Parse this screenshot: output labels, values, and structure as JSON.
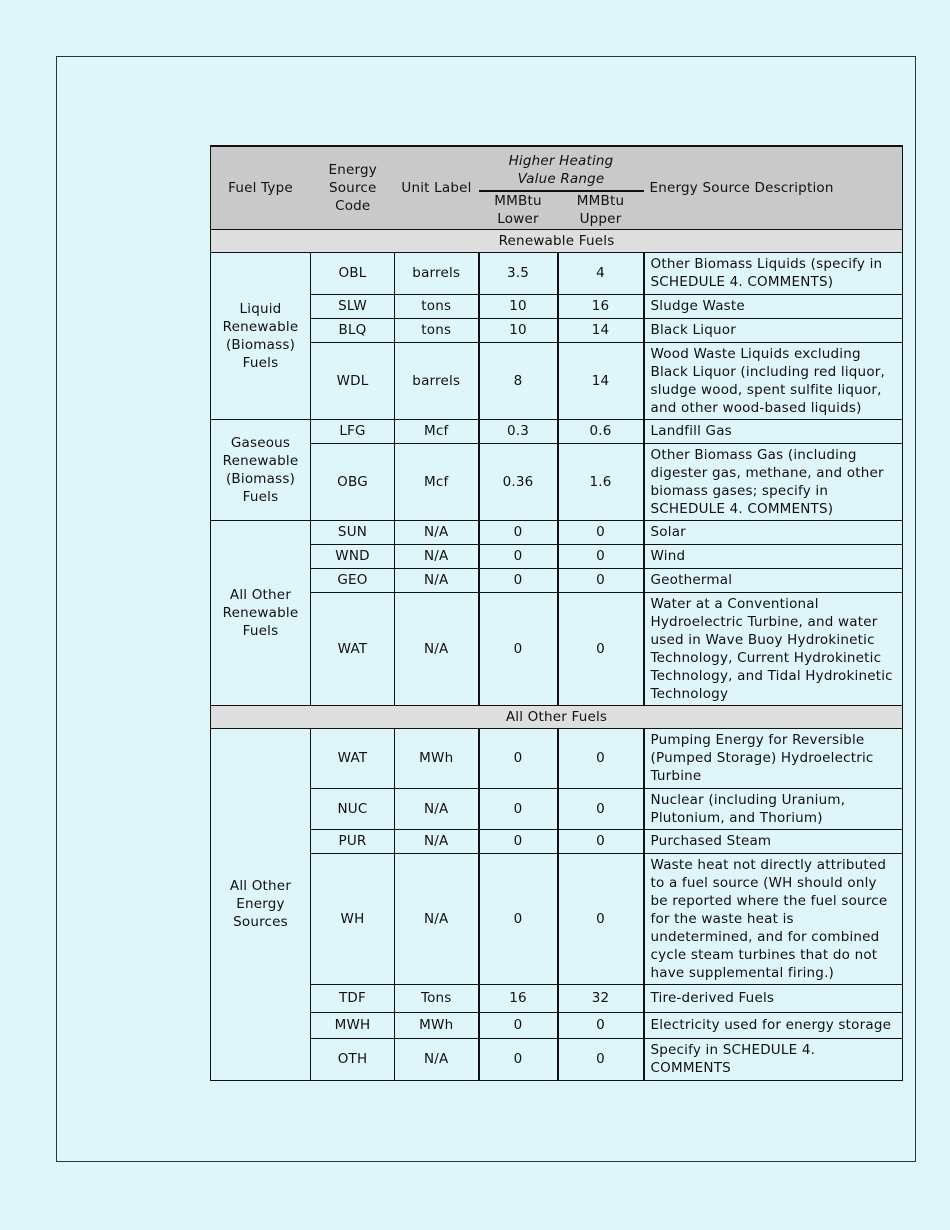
{
  "header": {
    "fuel_type": "Fuel Type",
    "code": "Energy Source Code",
    "unit": "Unit Label",
    "hhv": "Higher Heating Value Range",
    "lower": "MMBtu Lower",
    "upper": "MMBtu Upper",
    "description": "Energy Source Description"
  },
  "sections": [
    {
      "title": "Renewable Fuels",
      "groups": [
        {
          "fuel_type": "Liquid Renewable (Biomass) Fuels",
          "rows": [
            {
              "code": "OBL",
              "unit": "barrels",
              "lower": "3.5",
              "upper": "4",
              "description": "Other Biomass Liquids (specify in SCHEDULE 4. COMMENTS)"
            },
            {
              "code": "SLW",
              "unit": "tons",
              "lower": "10",
              "upper": "16",
              "description": "Sludge Waste"
            },
            {
              "code": "BLQ",
              "unit": "tons",
              "lower": "10",
              "upper": "14",
              "description": "Black Liquor"
            },
            {
              "code": "WDL",
              "unit": "barrels",
              "lower": "8",
              "upper": "14",
              "description": "Wood Waste Liquids excluding Black Liquor (including red liquor, sludge wood, spent sulfite liquor, and other wood-based liquids)"
            }
          ]
        },
        {
          "fuel_type": "Gaseous Renewable (Biomass) Fuels",
          "rows": [
            {
              "code": "LFG",
              "unit": "Mcf",
              "lower": "0.3",
              "upper": "0.6",
              "description": "Landfill Gas"
            },
            {
              "code": "OBG",
              "unit": "Mcf",
              "lower": "0.36",
              "upper": "1.6",
              "description": "Other Biomass Gas (including digester gas, methane, and other biomass gases; specify in SCHEDULE 4. COMMENTS)"
            }
          ]
        },
        {
          "fuel_type": "All Other Renewable Fuels",
          "rows": [
            {
              "code": "SUN",
              "unit": "N/A",
              "lower": "0",
              "upper": "0",
              "description": "Solar"
            },
            {
              "code": "WND",
              "unit": "N/A",
              "lower": "0",
              "upper": "0",
              "description": "Wind"
            },
            {
              "code": "GEO",
              "unit": "N/A",
              "lower": "0",
              "upper": "0",
              "description": "Geothermal"
            },
            {
              "code": "WAT",
              "unit": "N/A",
              "lower": "0",
              "upper": "0",
              "description": "Water at a Conventional Hydroelectric Turbine, and water used in Wave Buoy Hydrokinetic Technology, Current Hydrokinetic Technology, and Tidal Hydrokinetic Technology"
            }
          ]
        }
      ]
    },
    {
      "title": "All Other Fuels",
      "groups": [
        {
          "fuel_type": "All Other Energy Sources",
          "rows": [
            {
              "code": "WAT",
              "unit": "MWh",
              "lower": "0",
              "upper": "0",
              "description": "Pumping Energy for Reversible (Pumped Storage) Hydroelectric Turbine"
            },
            {
              "code": "NUC",
              "unit": "N/A",
              "lower": "0",
              "upper": "0",
              "description": "Nuclear (including Uranium, Plutonium, and Thorium)"
            },
            {
              "code": "PUR",
              "unit": "N/A",
              "lower": "0",
              "upper": "0",
              "description": "Purchased Steam"
            },
            {
              "code": "WH",
              "unit": "N/A",
              "lower": "0",
              "upper": "0",
              "description": "Waste heat not directly attributed to a fuel source (WH should only be reported where the fuel source for the waste heat is undetermined, and for combined cycle steam turbines that do not have supplemental firing.)"
            },
            {
              "code": "TDF",
              "unit": "Tons",
              "lower": "16",
              "upper": "32",
              "description": "Tire-derived Fuels"
            },
            {
              "code": "MWH",
              "unit": "MWh",
              "lower": "0",
              "upper": "0",
              "description": "Electricity used for energy storage"
            },
            {
              "code": "OTH",
              "unit": "N/A",
              "lower": "0",
              "upper": "0",
              "description": "Specify in SCHEDULE 4. COMMENTS"
            }
          ]
        }
      ]
    }
  ]
}
